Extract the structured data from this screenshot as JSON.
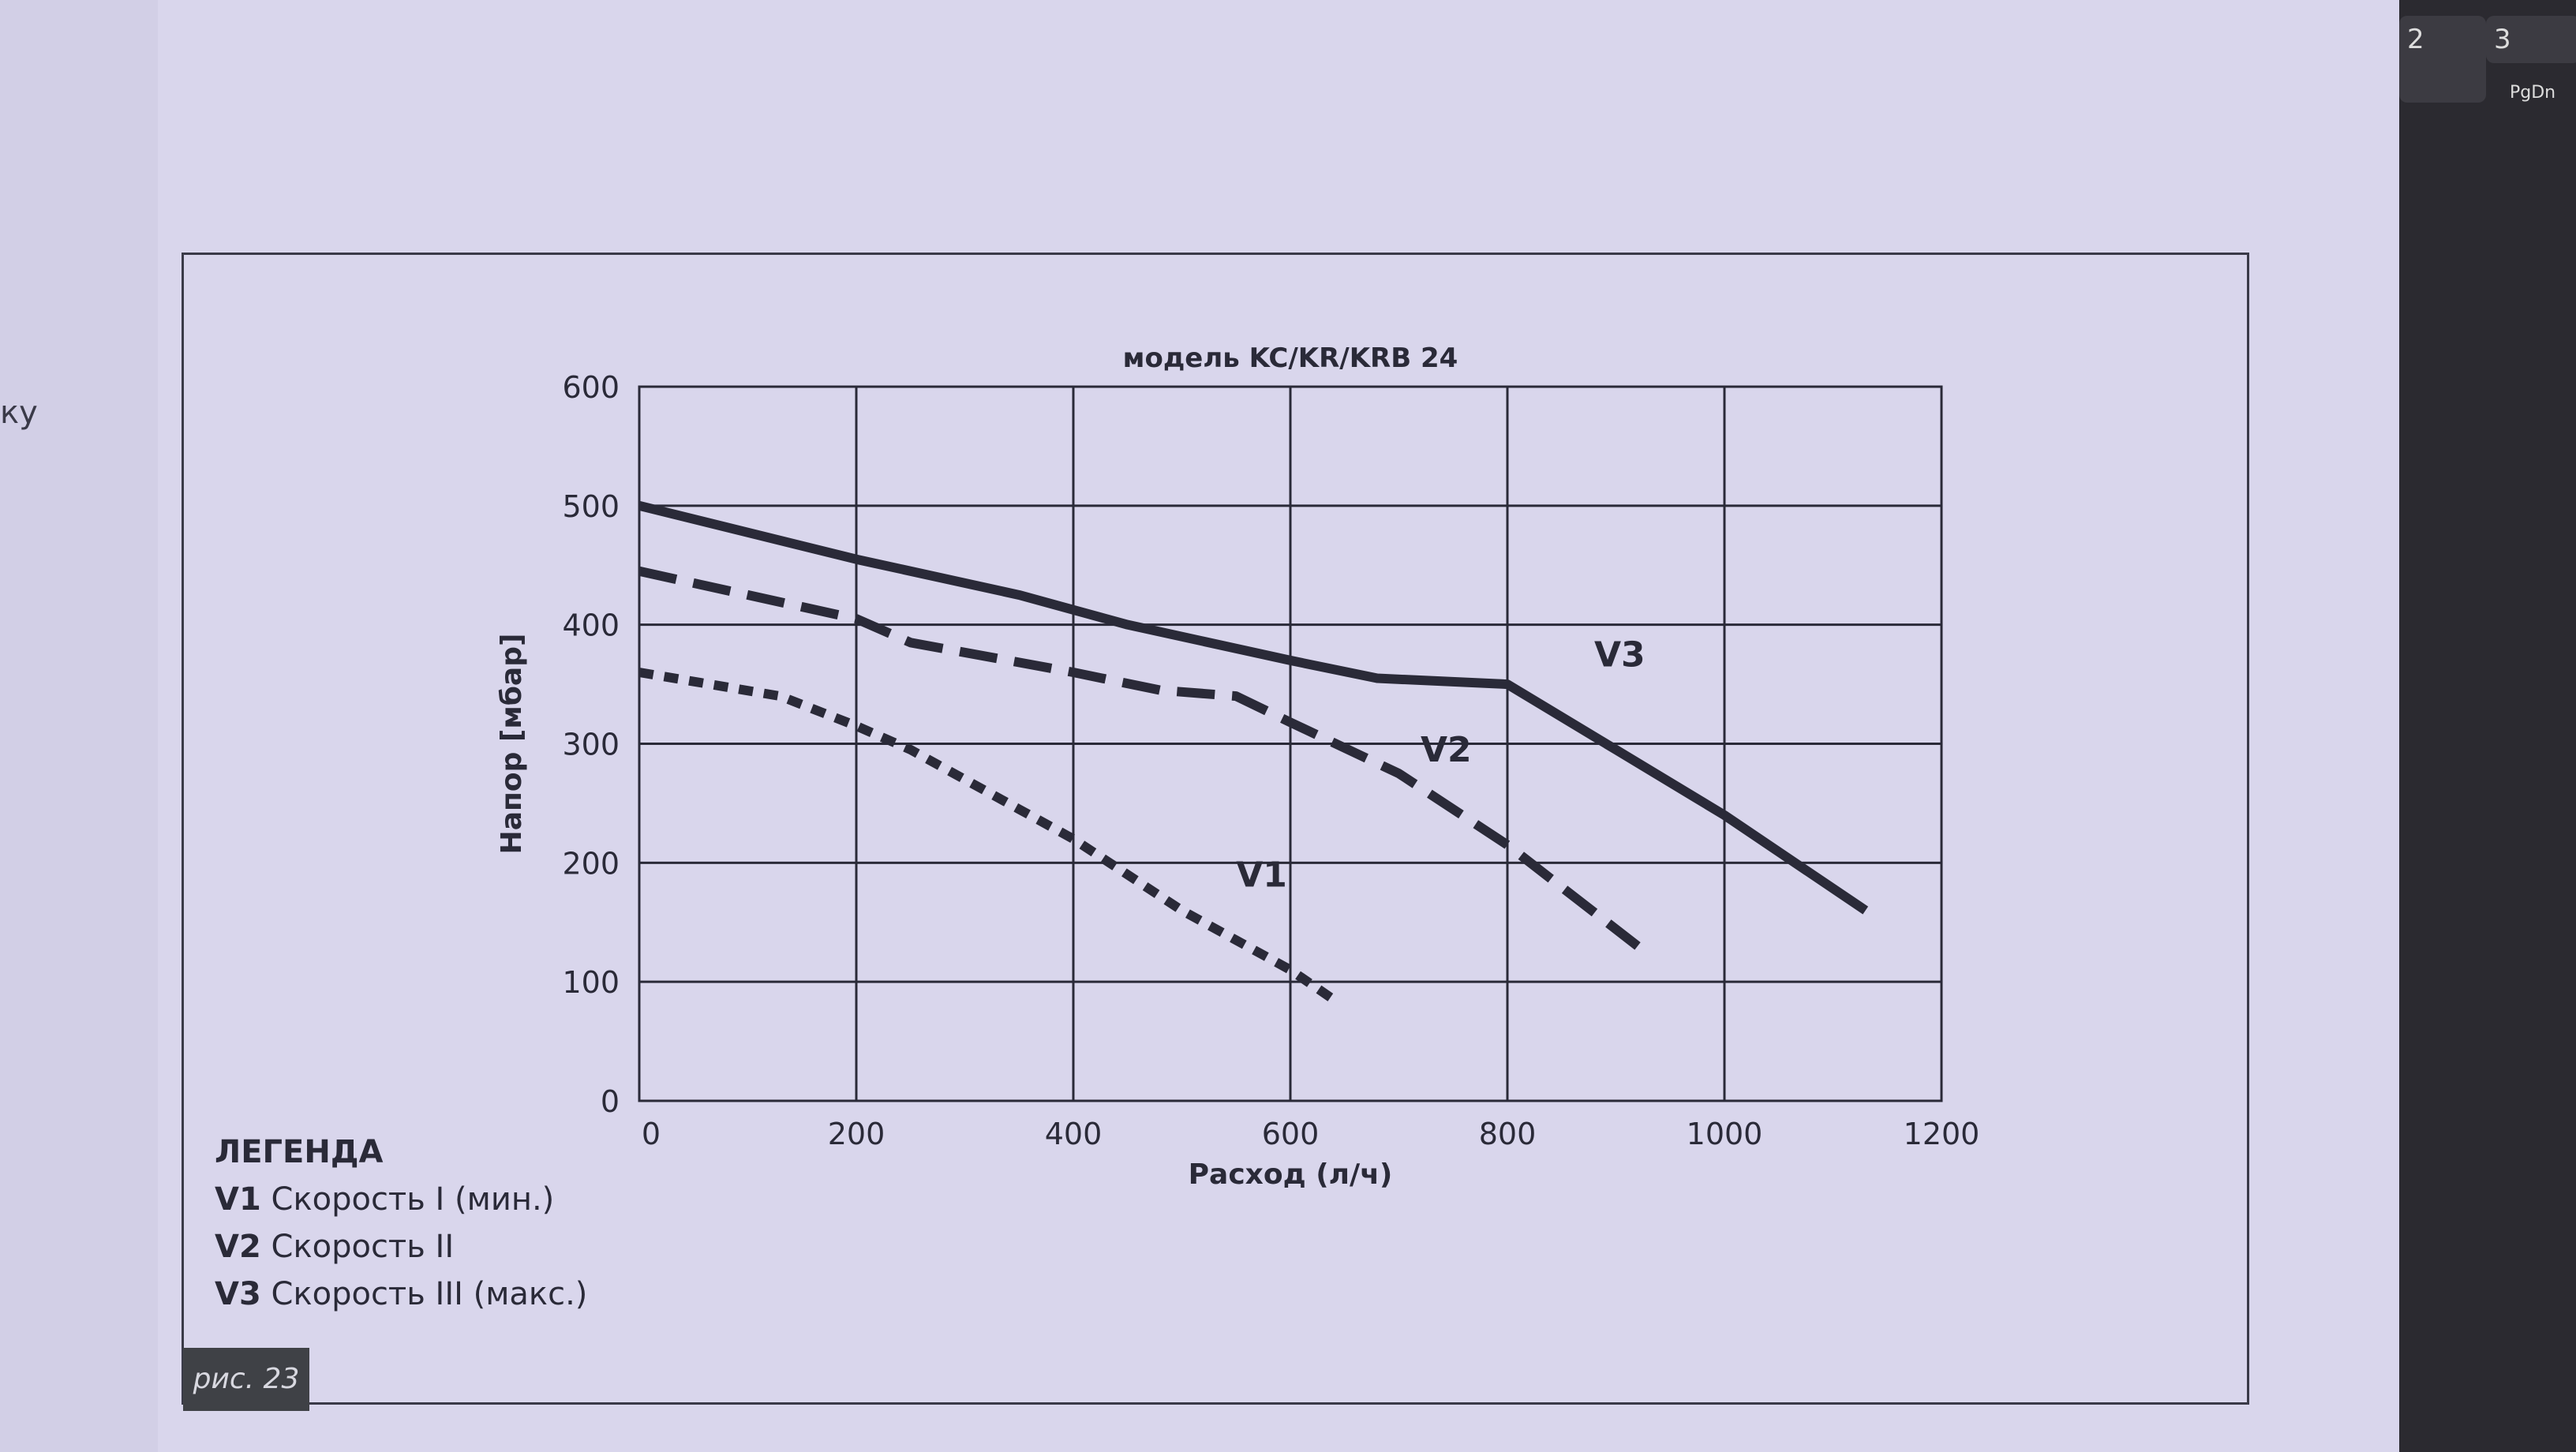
{
  "edge_text": "ку",
  "keyboard_keys": [
    "2",
    "3",
    "PgDn"
  ],
  "chart_data": {
    "type": "line",
    "title": "модель KC/KR/KRB 24",
    "xlabel": "Расход (л/ч)",
    "ylabel": "Напор [мбар]",
    "xlim": [
      0,
      1200
    ],
    "ylim": [
      0,
      600
    ],
    "xticks": [
      0,
      200,
      400,
      600,
      800,
      1000,
      1200
    ],
    "yticks": [
      0,
      100,
      200,
      300,
      400,
      500,
      600
    ],
    "grid": true,
    "series": [
      {
        "name": "V1",
        "style": "dotted",
        "x": [
          0,
          130,
          200,
          250,
          350,
          400,
          500,
          600,
          640
        ],
        "y": [
          360,
          340,
          315,
          295,
          245,
          220,
          160,
          110,
          85
        ]
      },
      {
        "name": "V2",
        "style": "dashed",
        "x": [
          0,
          200,
          250,
          400,
          480,
          550,
          600,
          700,
          800,
          920
        ],
        "y": [
          445,
          405,
          385,
          360,
          345,
          340,
          318,
          275,
          215,
          130
        ]
      },
      {
        "name": "V3",
        "style": "solid",
        "x": [
          0,
          200,
          350,
          450,
          600,
          680,
          800,
          900,
          1000,
          1130
        ],
        "y": [
          500,
          455,
          425,
          400,
          370,
          355,
          350,
          295,
          240,
          160
        ]
      }
    ],
    "series_labels": [
      {
        "text": "V1",
        "x": 550,
        "y": 180
      },
      {
        "text": "V2",
        "x": 720,
        "y": 285
      },
      {
        "text": "V3",
        "x": 880,
        "y": 365
      }
    ]
  },
  "legend": {
    "title": "ЛЕГЕНДА",
    "items": [
      {
        "code": "V1",
        "text": "Скорость I (мин.)"
      },
      {
        "code": "V2",
        "text": "Скорость II"
      },
      {
        "code": "V3",
        "text": "Скорость III (макс.)"
      }
    ]
  },
  "figure_label": "рис. 23",
  "colors": {
    "paper": "#d9d6ec",
    "ink": "#2a2a38",
    "label_box": "#3f4146"
  }
}
